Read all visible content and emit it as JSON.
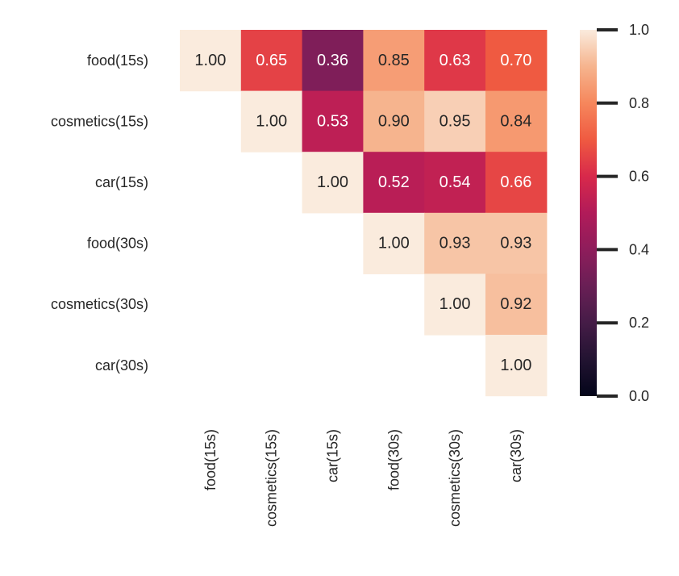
{
  "chart_data": {
    "type": "heatmap",
    "title": "",
    "xlabel": "",
    "ylabel": "",
    "rows": [
      "food(15s)",
      "cosmetics(15s)",
      "car(15s)",
      "food(30s)",
      "cosmetics(30s)",
      "car(30s)"
    ],
    "columns": [
      "food(15s)",
      "cosmetics(15s)",
      "car(15s)",
      "food(30s)",
      "cosmetics(30s)",
      "car(30s)"
    ],
    "values": [
      [
        1.0,
        0.65,
        0.36,
        0.85,
        0.63,
        0.7
      ],
      [
        null,
        1.0,
        0.53,
        0.9,
        0.95,
        0.84
      ],
      [
        null,
        null,
        1.0,
        0.52,
        0.54,
        0.66
      ],
      [
        null,
        null,
        null,
        1.0,
        0.93,
        0.93
      ],
      [
        null,
        null,
        null,
        null,
        1.0,
        0.92
      ],
      [
        null,
        null,
        null,
        null,
        null,
        1.0
      ]
    ],
    "value_format": "0.00",
    "mask": "lower-triangle",
    "colormap": "rocket",
    "colorbar": {
      "range": [
        0.0,
        1.0
      ],
      "ticks": [
        "0.0",
        "0.2",
        "0.4",
        "0.6",
        "0.8",
        "1.0"
      ],
      "position": "right"
    },
    "grid": false
  }
}
